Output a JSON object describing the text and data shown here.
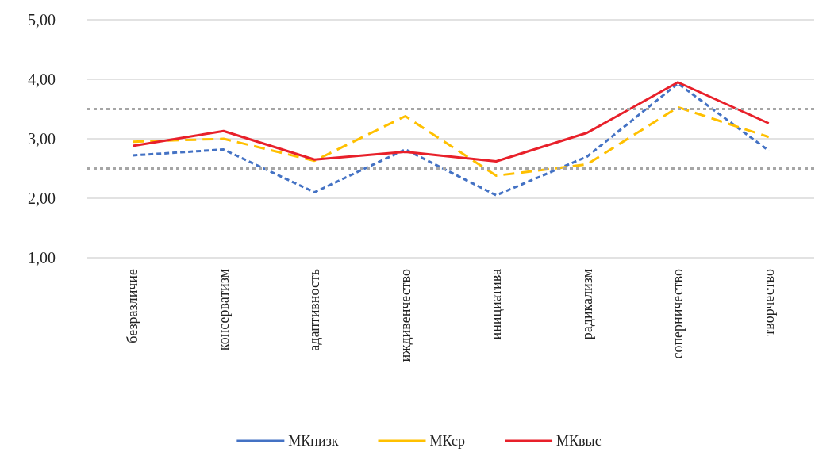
{
  "chart_data": {
    "type": "line",
    "categories": [
      "безразличие",
      "консерватизм",
      "адаптивность",
      "иждивенчество",
      "инициатива",
      "радикализм",
      "соперничество",
      "творчество"
    ],
    "series": [
      {
        "name": "МКнизк",
        "color": "#4472c4",
        "line_style": "dashed",
        "values": [
          2.72,
          2.82,
          2.1,
          2.82,
          2.05,
          2.7,
          3.93,
          2.8
        ]
      },
      {
        "name": "МКср",
        "color": "#ffc000",
        "line_style": "dashed",
        "values": [
          2.95,
          3.0,
          2.63,
          3.38,
          2.38,
          2.57,
          3.53,
          3.03
        ]
      },
      {
        "name": "МКвыс",
        "color": "#e8202a",
        "line_style": "solid",
        "values": [
          2.88,
          3.13,
          2.65,
          2.78,
          2.62,
          3.1,
          3.95,
          3.26
        ]
      }
    ],
    "ylim": [
      1,
      5
    ],
    "yticks": [
      {
        "value": 1,
        "label": "1,00"
      },
      {
        "value": 2,
        "label": "2,00"
      },
      {
        "value": 3,
        "label": "3,00"
      },
      {
        "value": 4,
        "label": "4,00"
      },
      {
        "value": 5,
        "label": "5,00"
      }
    ],
    "grid": "y",
    "legend": "bottom",
    "marker": "none",
    "ref_lines": [
      {
        "axis": "y",
        "value": 3.5,
        "label": null,
        "color": "#a6a6a6",
        "line_style": "dotted"
      },
      {
        "axis": "y",
        "value": 2.5,
        "label": null,
        "color": "#a6a6a6",
        "line_style": "dotted"
      }
    ]
  }
}
